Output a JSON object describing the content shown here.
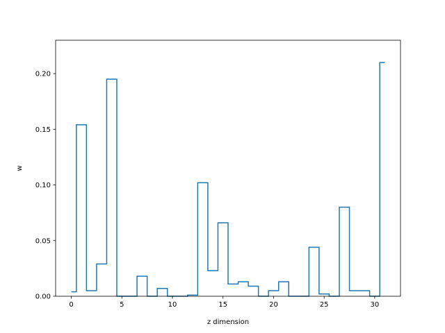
{
  "chart_data": {
    "type": "line",
    "drawstyle": "steps-mid",
    "title": "",
    "xlabel": "z dimension",
    "ylabel": "w",
    "xlim": [
      -1.55,
      32.55
    ],
    "ylim": [
      0,
      0.23
    ],
    "xticks": [
      0,
      5,
      10,
      15,
      20,
      25,
      30
    ],
    "yticks": [
      0.0,
      0.05,
      0.1,
      0.15,
      0.2
    ],
    "ytick_labels": [
      "0.00",
      "0.05",
      "0.10",
      "0.15",
      "0.20"
    ],
    "grid": false,
    "line_color": "#1f77b4",
    "x": [
      0,
      1,
      2,
      3,
      4,
      5,
      6,
      7,
      8,
      9,
      10,
      11,
      12,
      13,
      14,
      15,
      16,
      17,
      18,
      19,
      20,
      21,
      22,
      23,
      24,
      25,
      26,
      27,
      28,
      29,
      30,
      31
    ],
    "y": [
      0.004,
      0.154,
      0.005,
      0.029,
      0.195,
      0.0,
      0.0,
      0.018,
      0.0,
      0.007,
      0.0,
      0.0,
      0.001,
      0.102,
      0.023,
      0.066,
      0.011,
      0.013,
      0.009,
      0.0,
      0.005,
      0.013,
      0.0,
      0.0,
      0.044,
      0.002,
      0.0,
      0.08,
      0.005,
      0.005,
      0.0,
      0.21
    ]
  }
}
